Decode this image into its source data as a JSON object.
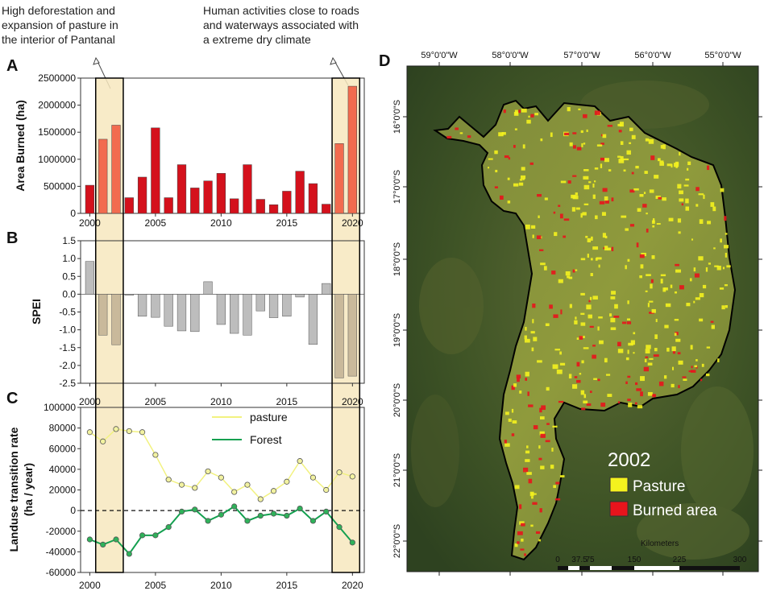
{
  "annotations": {
    "left": [
      "High deforestation and",
      "expansion of pasture in",
      "the interior of Pantanal"
    ],
    "right": [
      "Human activities close to roads",
      "and waterways associated with",
      "a extreme dry climate"
    ]
  },
  "panel_labels": {
    "a": "A",
    "b": "B",
    "c": "C",
    "d": "D"
  },
  "colors": {
    "bar_red": "#d4111c",
    "bar_highlight": "#f26b4f",
    "bar_grey": "#bdbdbd",
    "bar_grey_highlight": "#c9b99b",
    "pasture": "#f2f280",
    "forest": "#14a050",
    "highlight_fill": "#f7e7be",
    "map_pasture": "#f4f21e",
    "map_burned": "#e8141c"
  },
  "chart_data": [
    {
      "id": "A",
      "type": "bar",
      "ylabel": "Area Burned (ha)",
      "x": [
        2000,
        2001,
        2002,
        2003,
        2004,
        2005,
        2006,
        2007,
        2008,
        2009,
        2010,
        2011,
        2012,
        2013,
        2014,
        2015,
        2016,
        2017,
        2018,
        2019,
        2020
      ],
      "values": [
        520000,
        1370000,
        1630000,
        290000,
        670000,
        1580000,
        290000,
        900000,
        470000,
        600000,
        740000,
        270000,
        900000,
        260000,
        160000,
        410000,
        780000,
        550000,
        170000,
        1290000,
        2350000
      ],
      "ylim": [
        0,
        2500000
      ],
      "yticks": [
        "0",
        "500000",
        "1000000",
        "1500000",
        "2000000",
        "2500000"
      ],
      "xticks": [
        "2000",
        "2005",
        "2010",
        "2015",
        "2020"
      ],
      "highlight_years": [
        [
          2001,
          2002
        ],
        [
          2019,
          2020
        ]
      ]
    },
    {
      "id": "B",
      "type": "bar",
      "ylabel": "SPEI",
      "x": [
        2000,
        2001,
        2002,
        2003,
        2004,
        2005,
        2006,
        2007,
        2008,
        2009,
        2010,
        2011,
        2012,
        2013,
        2014,
        2015,
        2016,
        2017,
        2018,
        2019,
        2020
      ],
      "values": [
        0.92,
        -1.15,
        -1.42,
        -0.03,
        -0.62,
        -0.65,
        -0.9,
        -1.03,
        -1.05,
        0.35,
        -0.85,
        -1.1,
        -1.15,
        -0.47,
        -0.66,
        -0.62,
        -0.08,
        -1.41,
        0.3,
        -2.35,
        -2.3
      ],
      "ylim": [
        -2.5,
        1.5
      ],
      "yticks": [
        "1.5",
        "1.0",
        "0.5",
        "0.0",
        "-0.5",
        "-1.0",
        "-1.5",
        "-2.0",
        "-2.5"
      ],
      "xticks": [
        "2000",
        "2005",
        "2010",
        "2015",
        "2020"
      ]
    },
    {
      "id": "C",
      "type": "line",
      "ylabel_lines": [
        "Landuse transition rate",
        "(ha / year)"
      ],
      "x": [
        2000,
        2001,
        2002,
        2003,
        2004,
        2005,
        2006,
        2007,
        2008,
        2009,
        2010,
        2011,
        2012,
        2013,
        2014,
        2015,
        2016,
        2017,
        2018,
        2019,
        2020
      ],
      "series": [
        {
          "name": "pasture",
          "values": [
            76000,
            67000,
            79000,
            77000,
            76000,
            54000,
            30000,
            25000,
            22000,
            38000,
            32000,
            18000,
            25000,
            11000,
            19000,
            28000,
            48000,
            32000,
            20000,
            37000,
            33000
          ]
        },
        {
          "name": "Forest",
          "values": [
            -28000,
            -33000,
            -28000,
            -42000,
            -24000,
            -24000,
            -16000,
            -1000,
            1000,
            -10000,
            -4000,
            4000,
            -10000,
            -5000,
            -3000,
            -5000,
            2000,
            -10000,
            -1000,
            -16000,
            -31000
          ]
        }
      ],
      "ylim": [
        -60000,
        100000
      ],
      "yticks": [
        "100000",
        "80000",
        "60000",
        "40000",
        "20000",
        "0",
        "-20000",
        "-40000",
        "-60000"
      ],
      "xticks": [
        "2000",
        "2005",
        "2010",
        "2015",
        "2020"
      ]
    }
  ],
  "map": {
    "year": "2002",
    "legend": [
      {
        "label": "Pasture"
      },
      {
        "label": "Burned area"
      }
    ],
    "top_ticks": [
      "59°0'0\"W",
      "58°0'0\"W",
      "57°0'0\"W",
      "56°0'0\"W",
      "55°0'0\"W"
    ],
    "left_ticks": [
      "16°0'0\"S",
      "17°0'0\"S",
      "18°0'0\"S",
      "19°0'0\"S",
      "20°0'0\"S",
      "21°0'0\"S",
      "22°0'0\"S"
    ],
    "scale_title": "Kilometers",
    "scale_ticks": [
      "0",
      "37.5",
      "75",
      "150",
      "225",
      "300"
    ]
  }
}
